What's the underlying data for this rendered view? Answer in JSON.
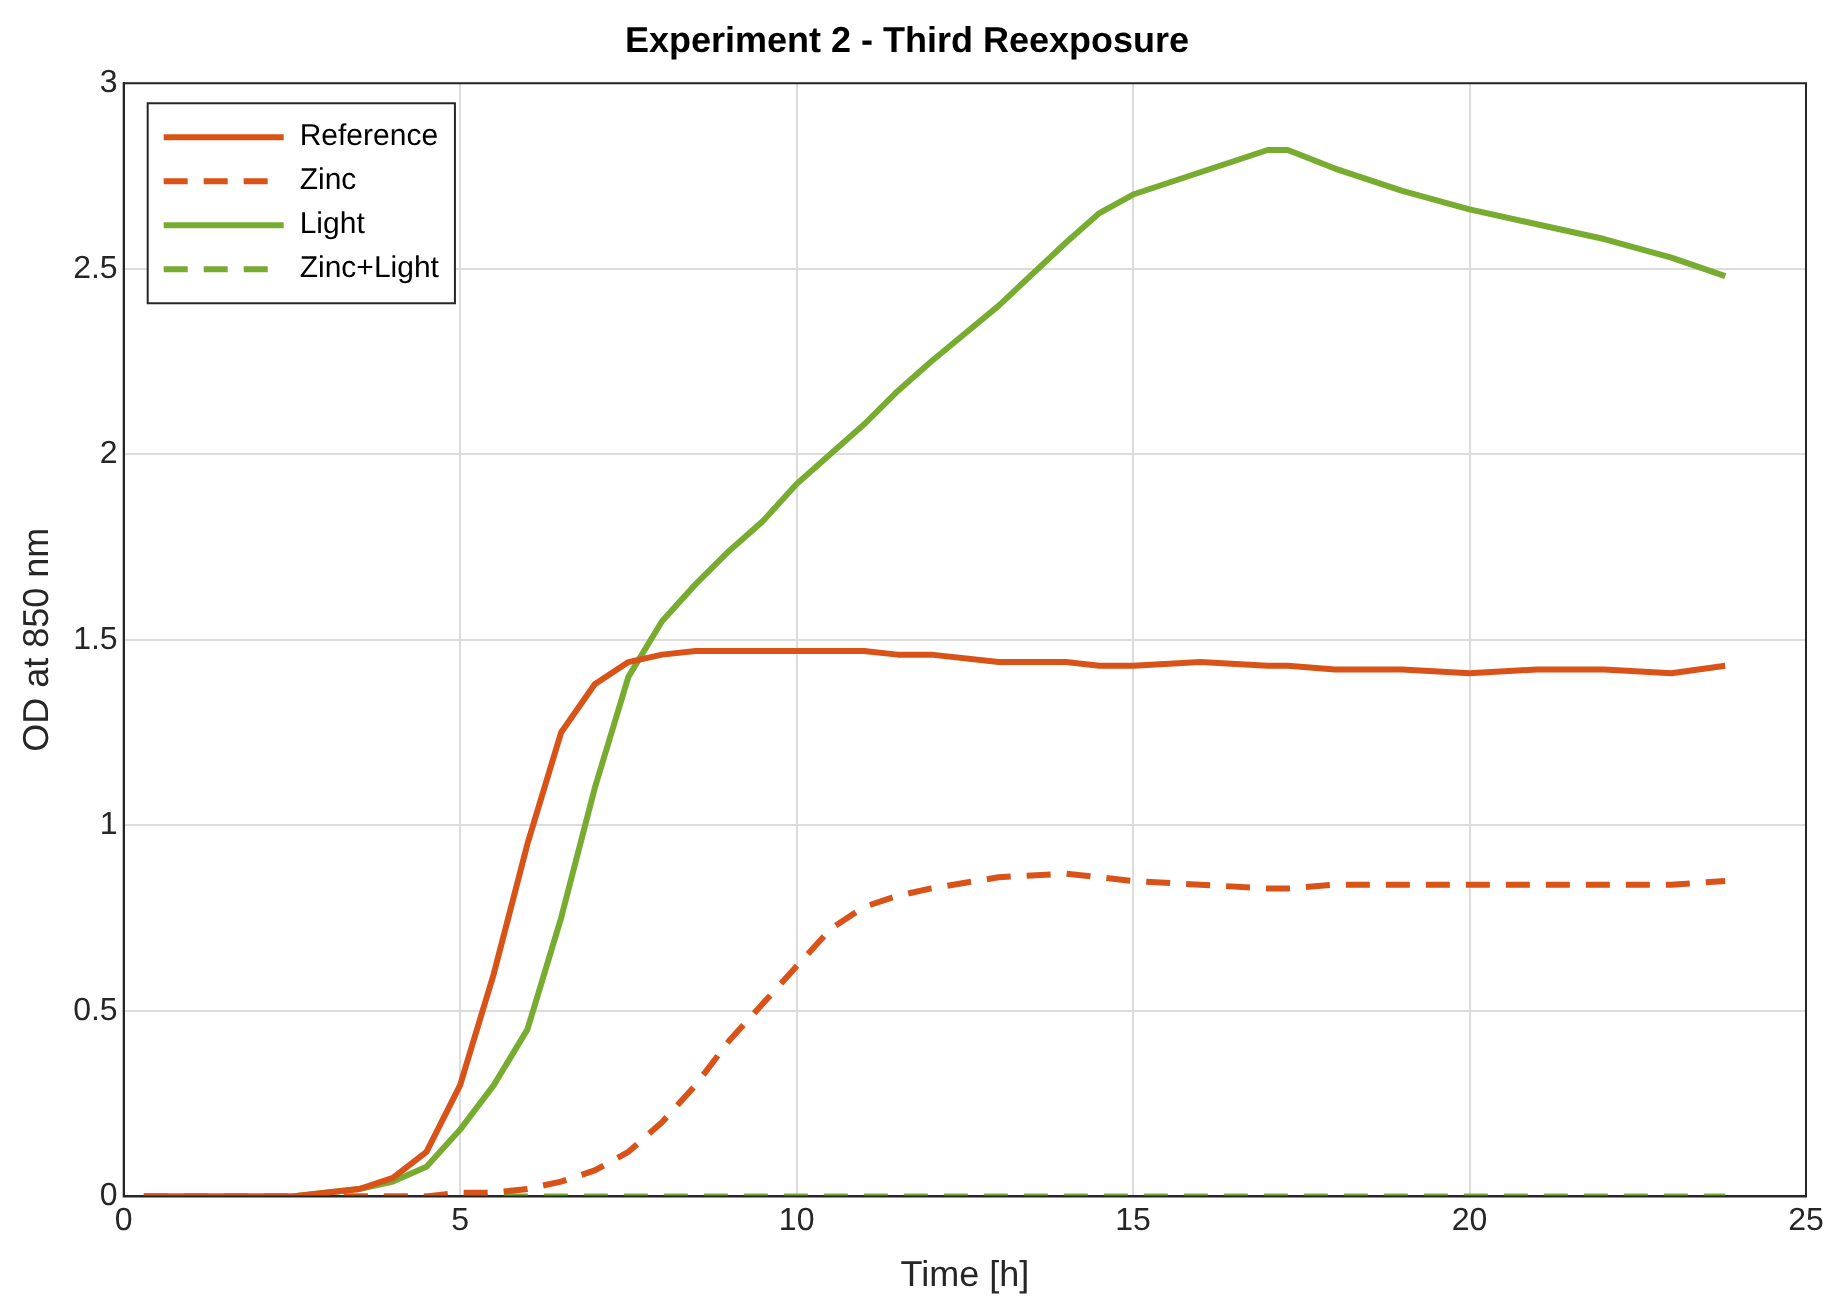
{
  "chart_data": {
    "type": "line",
    "title": "Experiment 2 - Third Reexposure",
    "xlabel": "Time [h]",
    "ylabel": "OD at 850 nm",
    "x": [
      0.3,
      1,
      2,
      2.5,
      3,
      3.5,
      4,
      4.5,
      5,
      5.5,
      6,
      6.5,
      7,
      7.5,
      8,
      8.5,
      9,
      9.5,
      10,
      10.5,
      11,
      11.5,
      12,
      13,
      14,
      14.5,
      15,
      16,
      17,
      17.3,
      18,
      19,
      20,
      21,
      22,
      23,
      23.8
    ],
    "series": [
      {
        "name": "Reference",
        "color": "#d95319",
        "line_style": "solid",
        "values": [
          0,
          0,
          0,
          0,
          0.01,
          0.02,
          0.05,
          0.12,
          0.3,
          0.6,
          0.95,
          1.25,
          1.38,
          1.44,
          1.46,
          1.47,
          1.47,
          1.47,
          1.47,
          1.47,
          1.47,
          1.46,
          1.46,
          1.44,
          1.44,
          1.43,
          1.43,
          1.44,
          1.43,
          1.43,
          1.42,
          1.42,
          1.41,
          1.42,
          1.42,
          1.41,
          1.43
        ]
      },
      {
        "name": "Zinc",
        "color": "#d95319",
        "line_style": "dashed",
        "values": [
          0,
          0,
          0,
          0,
          0,
          0,
          0,
          0,
          0.01,
          0.01,
          0.02,
          0.04,
          0.07,
          0.12,
          0.2,
          0.3,
          0.42,
          0.52,
          0.62,
          0.72,
          0.78,
          0.81,
          0.83,
          0.86,
          0.87,
          0.86,
          0.85,
          0.84,
          0.83,
          0.83,
          0.84,
          0.84,
          0.84,
          0.84,
          0.84,
          0.84,
          0.85
        ]
      },
      {
        "name": "Light",
        "color": "#77ac30",
        "line_style": "solid",
        "values": [
          0,
          0,
          0,
          0,
          0.01,
          0.02,
          0.04,
          0.08,
          0.18,
          0.3,
          0.45,
          0.75,
          1.1,
          1.4,
          1.55,
          1.65,
          1.74,
          1.82,
          1.92,
          2.0,
          2.08,
          2.17,
          2.25,
          2.4,
          2.57,
          2.65,
          2.7,
          2.76,
          2.82,
          2.82,
          2.77,
          2.71,
          2.66,
          2.62,
          2.58,
          2.53,
          2.48
        ]
      },
      {
        "name": "Zinc+Light",
        "color": "#77ac30",
        "line_style": "dashed",
        "values": [
          0,
          0,
          0,
          0,
          0,
          0,
          0,
          0,
          0,
          0,
          0,
          0,
          0,
          0,
          0,
          0,
          0,
          0,
          0,
          0,
          0,
          0,
          0,
          0,
          0,
          0,
          0,
          0,
          0,
          0,
          0,
          0,
          0,
          0,
          0,
          0,
          0
        ]
      }
    ],
    "xlim": [
      0,
      25
    ],
    "xticks": [
      0,
      5,
      10,
      15,
      20,
      25
    ],
    "ylim": [
      0,
      3
    ],
    "yticks": [
      0,
      0.5,
      1,
      1.5,
      2,
      2.5,
      3
    ],
    "grid": true,
    "legend": "top left",
    "marker": "none"
  }
}
